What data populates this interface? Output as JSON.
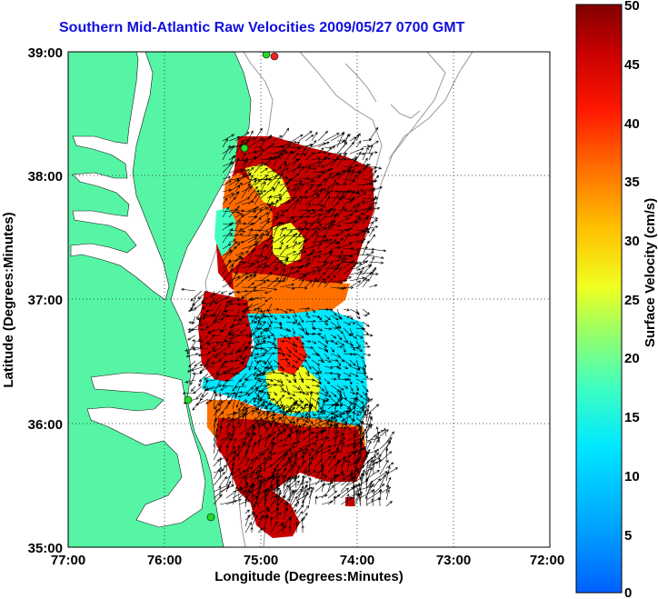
{
  "title": "Southern Mid-Atlantic Raw Velocities 2009/05/27 0700 GMT",
  "xlabel": "Longitude (Degrees:Minutes)",
  "ylabel": "Latitude (Degrees:Minutes)",
  "colorbar_label": "Surface Velocity (cm/s)",
  "x_ticks": [
    "77:00",
    "76:00",
    "75:00",
    "74:00",
    "73:00",
    "72:00"
  ],
  "y_ticks": [
    "39:00",
    "38:00",
    "37:00",
    "36:00",
    "35:00"
  ],
  "colorbar_ticks": [
    "50",
    "45",
    "40",
    "35",
    "30",
    "25",
    "20",
    "15",
    "10",
    "5",
    "0"
  ],
  "colors": {
    "land": "#55f5a5",
    "title": "#1010e0",
    "station_green": "#22dd22",
    "station_red": "#ee2222"
  },
  "chart_data": {
    "type": "heatmap",
    "title": "Southern Mid-Atlantic Raw Velocities 2009/05/27 0700 GMT",
    "xlabel": "Longitude (Degrees:Minutes)",
    "ylabel": "Latitude (Degrees:Minutes)",
    "xlim": [
      -77.0,
      -72.0
    ],
    "ylim": [
      35.0,
      39.0
    ],
    "colorbar": {
      "label": "Surface Velocity (cm/s)",
      "range": [
        0,
        50
      ],
      "step": 5
    },
    "grid": "dotted"
  }
}
